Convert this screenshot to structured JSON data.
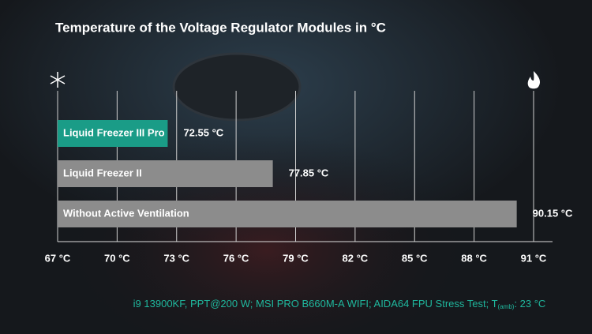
{
  "chart_data": {
    "type": "hbar",
    "title": "Temperature of the Voltage Regulator Modules in °C",
    "categories": [
      "Liquid Freezer III Pro",
      "Liquid Freezer II",
      "Without Active Ventilation"
    ],
    "values": [
      72.55,
      77.85,
      90.15
    ],
    "value_labels": [
      "72.55 °C",
      "77.85 °C",
      "90.15 °C"
    ],
    "colors": [
      "#1a9c87",
      "#8c8c8c",
      "#8c8c8c"
    ],
    "xlim": [
      67,
      91
    ],
    "xticks": [
      {
        "value": 67,
        "label": "67 °C"
      },
      {
        "value": 70,
        "label": "70 °C"
      },
      {
        "value": 73,
        "label": "73 °C"
      },
      {
        "value": 76,
        "label": "76 °C"
      },
      {
        "value": 79,
        "label": "79 °C"
      },
      {
        "value": 82,
        "label": "82 °C"
      },
      {
        "value": 85,
        "label": "85 °C"
      },
      {
        "value": 88,
        "label": "88 °C"
      },
      {
        "value": 91,
        "label": "91 °C"
      }
    ],
    "grid": true,
    "footnote": {
      "text": "i9 13900KF, PPT@200 W; MSI PRO B660M-A WIFI; AIDA64 FPU Stress Test; T",
      "subscript": "(amb)",
      "suffix": ": 23 °C"
    }
  }
}
